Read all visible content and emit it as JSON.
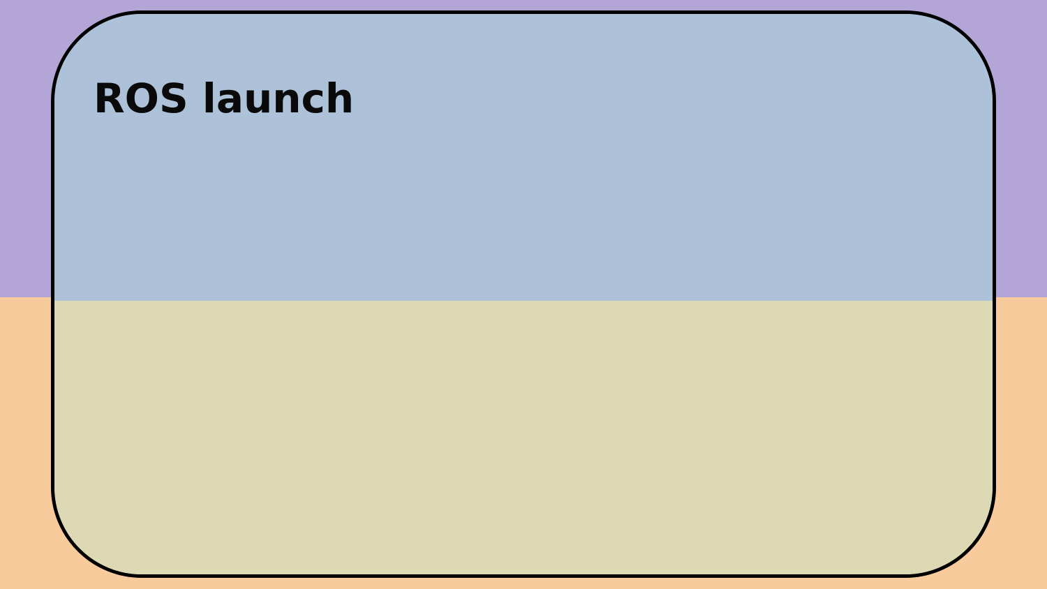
{
  "slide": {
    "title": "ROS launch"
  },
  "colors": {
    "background_top": "#b3a6d6",
    "background_bottom": "#f8cb9d",
    "card_top": "#adc2d9",
    "card_bottom": "#dcd9b4",
    "border": "#000000",
    "title_text": "#0a0a0a"
  }
}
